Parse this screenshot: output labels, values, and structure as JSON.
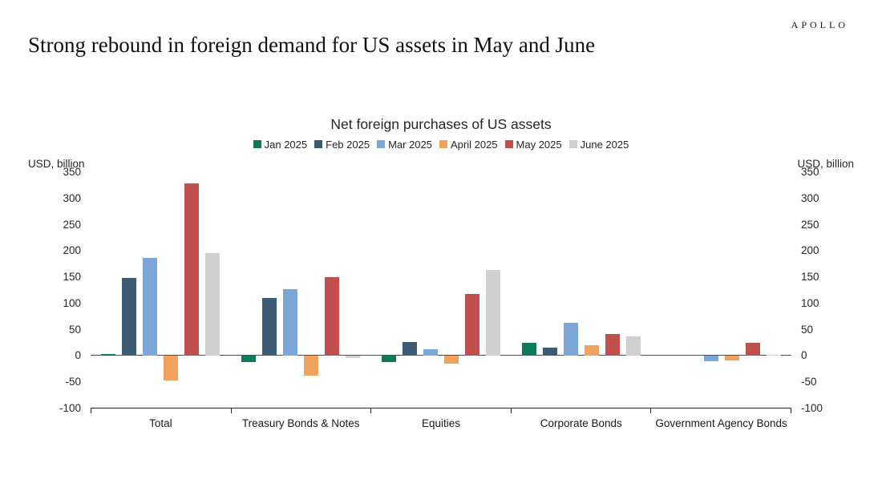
{
  "brand": {
    "logo_text": "APOLLO"
  },
  "header": {
    "title": "Strong rebound in foreign demand for US assets in May and June"
  },
  "chart_data": {
    "type": "bar",
    "title": "Net foreign purchases of US assets",
    "axis_unit_left": "USD, billion",
    "axis_unit_right": "USD, billion",
    "ylim": [
      -100,
      350
    ],
    "yticks": [
      350,
      300,
      250,
      200,
      150,
      100,
      50,
      0,
      -50,
      -100
    ],
    "grid": false,
    "legend_position": "top",
    "categories": [
      "Total",
      "Treasury Bonds & Notes",
      "Equities",
      "Corporate Bonds",
      "Government Agency Bonds"
    ],
    "series": [
      {
        "name": "Jan 2025",
        "color": "#0e7a5b",
        "values": [
          2,
          -13,
          -12,
          24,
          0
        ]
      },
      {
        "name": "Feb 2025",
        "color": "#3d5a73",
        "values": [
          148,
          109,
          26,
          15,
          0
        ]
      },
      {
        "name": "Mar 2025",
        "color": "#7aa6d8",
        "values": [
          186,
          126,
          12,
          62,
          -11
        ]
      },
      {
        "name": "April 2025",
        "color": "#f0a25f",
        "values": [
          -48,
          -38,
          -16,
          20,
          -9
        ]
      },
      {
        "name": "May 2025",
        "color": "#c0504d",
        "values": [
          328,
          150,
          118,
          41,
          24
        ]
      },
      {
        "name": "June 2025",
        "color": "#d0d0d0",
        "values": [
          195,
          -5,
          164,
          37,
          1
        ]
      }
    ]
  }
}
